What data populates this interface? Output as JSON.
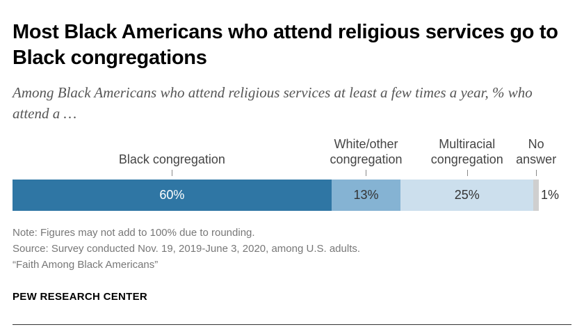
{
  "title": "Most Black Americans who attend religious services go to Black congregations",
  "subtitle": "Among Black Americans who attend religious services at least a few times a year, % who attend a …",
  "chart_data": {
    "type": "bar",
    "orientation": "horizontal-stacked",
    "categories": [
      "Black congregation",
      "White/other congregation",
      "Multiracial congregation",
      "No answer"
    ],
    "label_lines": [
      [
        "Black congregation"
      ],
      [
        "White/other",
        "congregation"
      ],
      [
        "Multiracial",
        "congregation"
      ],
      [
        "No",
        "answer"
      ]
    ],
    "values": [
      60,
      13,
      25,
      1
    ],
    "value_labels": [
      "60%",
      "13%",
      "25%",
      "1%"
    ],
    "colors": [
      "#2f76a4",
      "#85b3d3",
      "#ccdfed",
      "#cfcfcf"
    ],
    "value_label_colors": [
      "#ffffff",
      "#333333",
      "#333333",
      "#333333"
    ],
    "unit": "%"
  },
  "notes": {
    "note": "Note: Figures may not add to 100% due to rounding.",
    "source": "Source: Survey conducted Nov. 19, 2019-June 3, 2020, among U.S. adults.",
    "report": "“Faith Among Black Americans”"
  },
  "brand": "PEW RESEARCH CENTER"
}
